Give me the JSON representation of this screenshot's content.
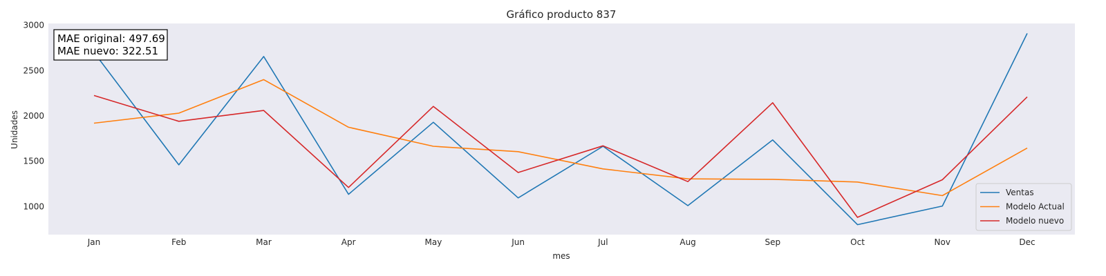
{
  "chart_data": {
    "type": "line",
    "title": "Gráfico producto 837",
    "xlabel": "mes",
    "ylabel": "Unidades",
    "categories": [
      "Jan",
      "Feb",
      "Mar",
      "Apr",
      "May",
      "Jun",
      "Jul",
      "Aug",
      "Sep",
      "Oct",
      "Nov",
      "Dec"
    ],
    "ylim": [
      690,
      3020
    ],
    "yticks": [
      1000,
      1500,
      2000,
      2500,
      3000
    ],
    "grid": false,
    "legend_position": "bottom-right",
    "series": [
      {
        "name": "Ventas",
        "color": "#1f77b4",
        "values": [
          2700,
          1460,
          2655,
          1135,
          1930,
          1095,
          1665,
          1010,
          1735,
          800,
          1005,
          2910
        ]
      },
      {
        "name": "Modelo Actual",
        "color": "#ff7f0e",
        "values": [
          1920,
          2030,
          2400,
          1875,
          1665,
          1605,
          1415,
          1305,
          1300,
          1270,
          1120,
          1645
        ]
      },
      {
        "name": "Modelo nuevo",
        "color": "#d62728",
        "values": [
          2225,
          1940,
          2060,
          1210,
          2105,
          1375,
          1670,
          1275,
          2145,
          880,
          1295,
          2210
        ]
      }
    ],
    "annotation": {
      "line1": "MAE original: 497.69",
      "line2": "MAE nuevo: 322.51"
    }
  }
}
